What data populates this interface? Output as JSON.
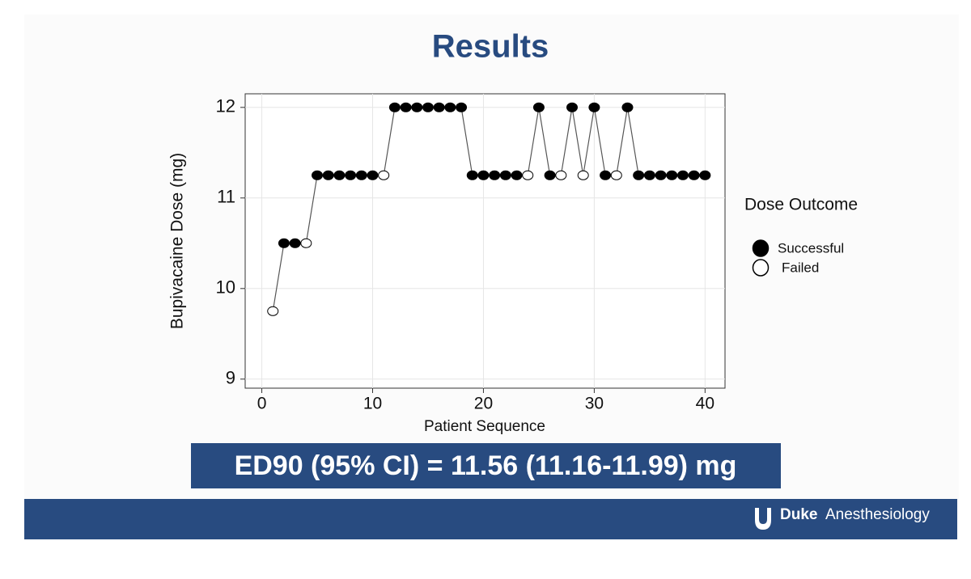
{
  "header": {
    "title": "Results"
  },
  "chart_data": {
    "type": "line",
    "xlabel": "Patient Sequence",
    "ylabel": "Bupivacaine Dose (mg)",
    "x": [
      1,
      2,
      3,
      4,
      5,
      6,
      7,
      8,
      9,
      10,
      11,
      12,
      13,
      14,
      15,
      16,
      17,
      18,
      19,
      20,
      21,
      22,
      23,
      24,
      25,
      26,
      27,
      28,
      29,
      30,
      31,
      32,
      33,
      34,
      35,
      36,
      37,
      38,
      39,
      40
    ],
    "values": [
      9.75,
      10.5,
      10.5,
      10.5,
      11.25,
      11.25,
      11.25,
      11.25,
      11.25,
      11.25,
      11.25,
      12,
      12,
      12,
      12,
      12,
      12,
      12,
      11.25,
      11.25,
      11.25,
      11.25,
      11.25,
      11.25,
      12,
      11.25,
      11.25,
      12,
      11.25,
      12,
      11.25,
      11.25,
      12,
      11.25,
      11.25,
      11.25,
      11.25,
      11.25,
      11.25,
      11.25
    ],
    "outcome": [
      "Failed",
      "Successful",
      "Successful",
      "Failed",
      "Successful",
      "Successful",
      "Successful",
      "Successful",
      "Successful",
      "Successful",
      "Failed",
      "Successful",
      "Successful",
      "Successful",
      "Successful",
      "Successful",
      "Successful",
      "Successful",
      "Successful",
      "Successful",
      "Successful",
      "Successful",
      "Successful",
      "Failed",
      "Successful",
      "Successful",
      "Failed",
      "Successful",
      "Failed",
      "Successful",
      "Successful",
      "Failed",
      "Successful",
      "Successful",
      "Successful",
      "Successful",
      "Successful",
      "Successful",
      "Successful",
      "Successful"
    ],
    "line_color": "#555555",
    "legend": {
      "title": "Dose Outcome",
      "entries": [
        {
          "label": "Successful",
          "fill": "#000000"
        },
        {
          "label": "Failed",
          "fill": "#ffffff"
        }
      ]
    },
    "xlim": [
      -1.5,
      41.8
    ],
    "xticks": [
      0,
      10,
      20,
      30,
      40
    ],
    "ylim": [
      8.9,
      12.15
    ],
    "yticks": [
      9,
      10,
      11,
      12
    ],
    "grid": true
  },
  "result_box": {
    "text": "ED90 (95% CI) = 11.56 (11.16-11.99) mg"
  },
  "footer": {
    "logo_bold": "Duke",
    "logo_text": "Anesthesiology"
  }
}
